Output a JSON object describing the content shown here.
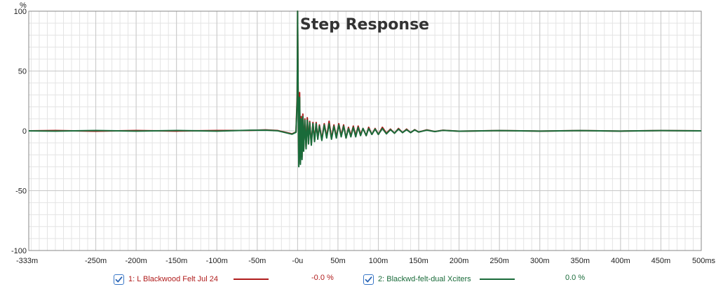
{
  "chart_data": {
    "type": "line",
    "title": "Step Response",
    "ylabel": "%",
    "xlabel": "",
    "xlim": [
      -0.333,
      0.5
    ],
    "ylim": [
      -100,
      100
    ],
    "grid": true,
    "x_ticks": [
      {
        "value": -0.333,
        "label": "-333m"
      },
      {
        "value": -0.25,
        "label": "-250m"
      },
      {
        "value": -0.2,
        "label": "-200m"
      },
      {
        "value": -0.15,
        "label": "-150m"
      },
      {
        "value": -0.1,
        "label": "-100m"
      },
      {
        "value": -0.05,
        "label": "-50m"
      },
      {
        "value": 0,
        "label": "-0u"
      },
      {
        "value": 0.05,
        "label": "50m"
      },
      {
        "value": 0.1,
        "label": "100m"
      },
      {
        "value": 0.15,
        "label": "150m"
      },
      {
        "value": 0.2,
        "label": "200m"
      },
      {
        "value": 0.25,
        "label": "250m"
      },
      {
        "value": 0.3,
        "label": "300m"
      },
      {
        "value": 0.35,
        "label": "350m"
      },
      {
        "value": 0.4,
        "label": "400m"
      },
      {
        "value": 0.45,
        "label": "450m"
      },
      {
        "value": 0.5,
        "label": "500ms"
      }
    ],
    "y_ticks": [
      {
        "value": 100,
        "label": "100"
      },
      {
        "value": 50,
        "label": "50"
      },
      {
        "value": 0,
        "label": "0"
      },
      {
        "value": -50,
        "label": "-50"
      },
      {
        "value": -100,
        "label": "-100"
      }
    ],
    "series": [
      {
        "name": "1: L Blackwood Felt Jul 24",
        "legend_value": "-0.0 %",
        "color": "#b01c1c",
        "checked": true,
        "points": [
          [
            -0.333,
            0
          ],
          [
            -0.3,
            0.3
          ],
          [
            -0.25,
            -0.3
          ],
          [
            -0.2,
            0.3
          ],
          [
            -0.15,
            -0.2
          ],
          [
            -0.1,
            0.3
          ],
          [
            -0.06,
            0.4
          ],
          [
            -0.04,
            0.8
          ],
          [
            -0.025,
            0.3
          ],
          [
            -0.015,
            -1.2
          ],
          [
            -0.007,
            -2.5
          ],
          [
            -0.002,
            -1
          ],
          [
            -0.0005,
            30
          ],
          [
            0,
            100
          ],
          [
            0.0008,
            20
          ],
          [
            0.0015,
            -27
          ],
          [
            0.0025,
            32
          ],
          [
            0.0035,
            -26
          ],
          [
            0.0045,
            12
          ],
          [
            0.0055,
            -22
          ],
          [
            0.0065,
            14
          ],
          [
            0.0075,
            -16
          ],
          [
            0.009,
            10
          ],
          [
            0.0105,
            -14
          ],
          [
            0.012,
            11
          ],
          [
            0.0135,
            -10
          ],
          [
            0.015,
            8
          ],
          [
            0.017,
            -11
          ],
          [
            0.019,
            7
          ],
          [
            0.021,
            -8
          ],
          [
            0.023,
            7
          ],
          [
            0.025,
            -6
          ],
          [
            0.027,
            5
          ],
          [
            0.03,
            -7
          ],
          [
            0.033,
            6
          ],
          [
            0.036,
            -5
          ],
          [
            0.039,
            8
          ],
          [
            0.042,
            -6
          ],
          [
            0.045,
            5
          ],
          [
            0.048,
            -5
          ],
          [
            0.051,
            6
          ],
          [
            0.054,
            -4
          ],
          [
            0.057,
            5
          ],
          [
            0.06,
            -6
          ],
          [
            0.063,
            3
          ],
          [
            0.066,
            -4
          ],
          [
            0.069,
            4
          ],
          [
            0.072,
            -4
          ],
          [
            0.075,
            4
          ],
          [
            0.078,
            -3
          ],
          [
            0.081,
            2
          ],
          [
            0.085,
            -4
          ],
          [
            0.088,
            3
          ],
          [
            0.092,
            -3
          ],
          [
            0.096,
            2
          ],
          [
            0.1,
            -3
          ],
          [
            0.105,
            3
          ],
          [
            0.11,
            -2
          ],
          [
            0.115,
            1.5
          ],
          [
            0.12,
            -2
          ],
          [
            0.125,
            2
          ],
          [
            0.13,
            -1.5
          ],
          [
            0.135,
            1.5
          ],
          [
            0.14,
            -1.5
          ],
          [
            0.145,
            1
          ],
          [
            0.15,
            -1
          ],
          [
            0.16,
            0.8
          ],
          [
            0.17,
            -0.6
          ],
          [
            0.18,
            0.5
          ],
          [
            0.2,
            -0.3
          ],
          [
            0.25,
            0.2
          ],
          [
            0.3,
            -0.2
          ],
          [
            0.35,
            0.2
          ],
          [
            0.4,
            -0.2
          ],
          [
            0.45,
            0.2
          ],
          [
            0.5,
            0
          ]
        ]
      },
      {
        "name": "2: Blackwd-felt-dual Xciters",
        "legend_value": "0.0 %",
        "color": "#1a6b3a",
        "checked": true,
        "points": [
          [
            -0.333,
            0
          ],
          [
            -0.3,
            -0.2
          ],
          [
            -0.25,
            0.3
          ],
          [
            -0.2,
            -0.2
          ],
          [
            -0.15,
            0.3
          ],
          [
            -0.1,
            -0.2
          ],
          [
            -0.06,
            0.5
          ],
          [
            -0.04,
            0.6
          ],
          [
            -0.025,
            0.1
          ],
          [
            -0.015,
            -1.5
          ],
          [
            -0.007,
            -2.8
          ],
          [
            -0.002,
            -1.2
          ],
          [
            -0.0005,
            25
          ],
          [
            0,
            100
          ],
          [
            0.0008,
            18
          ],
          [
            0.0015,
            -30
          ],
          [
            0.0025,
            28
          ],
          [
            0.0035,
            -28
          ],
          [
            0.0045,
            10
          ],
          [
            0.0055,
            -24
          ],
          [
            0.0065,
            12
          ],
          [
            0.0075,
            -17
          ],
          [
            0.009,
            9
          ],
          [
            0.0105,
            -15
          ],
          [
            0.012,
            9
          ],
          [
            0.0135,
            -11
          ],
          [
            0.015,
            7
          ],
          [
            0.017,
            -12
          ],
          [
            0.019,
            6
          ],
          [
            0.021,
            -9
          ],
          [
            0.023,
            6
          ],
          [
            0.025,
            -7
          ],
          [
            0.027,
            4
          ],
          [
            0.03,
            -8
          ],
          [
            0.033,
            5
          ],
          [
            0.036,
            -6
          ],
          [
            0.039,
            6
          ],
          [
            0.042,
            -7
          ],
          [
            0.045,
            4
          ],
          [
            0.048,
            -6
          ],
          [
            0.051,
            5
          ],
          [
            0.054,
            -5
          ],
          [
            0.057,
            4
          ],
          [
            0.06,
            -6
          ],
          [
            0.063,
            2
          ],
          [
            0.066,
            -5
          ],
          [
            0.069,
            3
          ],
          [
            0.072,
            -5
          ],
          [
            0.075,
            3
          ],
          [
            0.078,
            -4
          ],
          [
            0.081,
            2
          ],
          [
            0.085,
            -4
          ],
          [
            0.088,
            2
          ],
          [
            0.092,
            -3
          ],
          [
            0.096,
            1.5
          ],
          [
            0.1,
            -3
          ],
          [
            0.105,
            2
          ],
          [
            0.11,
            -2.5
          ],
          [
            0.115,
            1
          ],
          [
            0.12,
            -2
          ],
          [
            0.125,
            1.5
          ],
          [
            0.13,
            -1.5
          ],
          [
            0.135,
            1
          ],
          [
            0.14,
            -1.5
          ],
          [
            0.145,
            0.8
          ],
          [
            0.15,
            -1
          ],
          [
            0.16,
            0.6
          ],
          [
            0.17,
            -0.6
          ],
          [
            0.18,
            0.4
          ],
          [
            0.2,
            -0.3
          ],
          [
            0.25,
            0.2
          ],
          [
            0.3,
            -0.2
          ],
          [
            0.35,
            0.2
          ],
          [
            0.4,
            -0.2
          ],
          [
            0.45,
            0.2
          ],
          [
            0.5,
            0
          ]
        ]
      }
    ]
  },
  "colors": {
    "background": "#ffffff",
    "grid_major": "#c8c8c8",
    "grid_minor": "#e4e4e4",
    "axis": "#888888",
    "checkbox_border": "#3a78c8",
    "checkmark": "#2a64b4"
  }
}
